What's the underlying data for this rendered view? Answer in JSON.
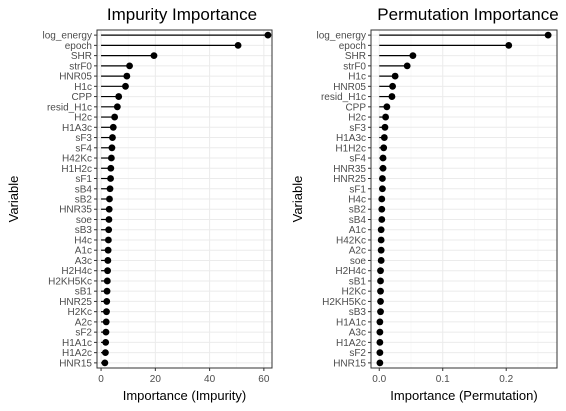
{
  "chart_data": [
    {
      "type": "lollipop",
      "title": "Impurity Importance",
      "xlabel": "Importance (Impurity)",
      "ylabel": "Variable",
      "xlim": [
        -1.5,
        63
      ],
      "xticks": [
        0,
        20,
        40,
        60
      ],
      "grid": true,
      "legend": "none",
      "categories": [
        "log_energy",
        "epoch",
        "SHR",
        "strF0",
        "HNR05",
        "H1c",
        "CPP",
        "resid_H1c",
        "H2c",
        "H1A3c",
        "sF3",
        "sF4",
        "H42Kc",
        "H1H2c",
        "sF1",
        "sB4",
        "sB2",
        "HNR35",
        "soe",
        "sB3",
        "H4c",
        "A1c",
        "A3c",
        "H2H4c",
        "H2KH5Kc",
        "sB1",
        "HNR25",
        "H2Kc",
        "A2c",
        "sF2",
        "H1A1c",
        "H1A2c",
        "HNR15"
      ],
      "values": [
        61.5,
        50.5,
        19.5,
        10.5,
        9.5,
        9.0,
        6.5,
        6.0,
        5.0,
        4.5,
        4.2,
        4.0,
        3.8,
        3.6,
        3.5,
        3.3,
        3.1,
        3.0,
        2.9,
        2.8,
        2.7,
        2.6,
        2.5,
        2.4,
        2.3,
        2.2,
        2.1,
        2.0,
        1.9,
        1.8,
        1.7,
        1.6,
        1.4
      ]
    },
    {
      "type": "lollipop",
      "title": "Permutation Importance",
      "xlabel": "Importance (Permutation)",
      "ylabel": "Variable",
      "xlim": [
        -0.013,
        0.28
      ],
      "xticks": [
        0.0,
        0.1,
        0.2
      ],
      "grid": true,
      "legend": "none",
      "categories": [
        "log_energy",
        "epoch",
        "SHR",
        "strF0",
        "H1c",
        "HNR05",
        "resid_H1c",
        "CPP",
        "H2c",
        "sF3",
        "H1A3c",
        "H1H2c",
        "sF4",
        "HNR35",
        "HNR25",
        "sF1",
        "H4c",
        "sB2",
        "sB4",
        "A1c",
        "H42Kc",
        "A2c",
        "soe",
        "H2H4c",
        "sB1",
        "H2Kc",
        "H2KH5Kc",
        "sB3",
        "H1A1c",
        "A3c",
        "H1A2c",
        "sF2",
        "HNR15"
      ],
      "values": [
        0.266,
        0.204,
        0.053,
        0.044,
        0.025,
        0.021,
        0.02,
        0.012,
        0.01,
        0.009,
        0.008,
        0.007,
        0.006,
        0.006,
        0.005,
        0.005,
        0.004,
        0.004,
        0.004,
        0.003,
        0.003,
        0.003,
        0.003,
        0.002,
        0.002,
        0.002,
        0.002,
        0.002,
        0.001,
        0.001,
        0.001,
        0.001,
        0.001
      ]
    }
  ]
}
